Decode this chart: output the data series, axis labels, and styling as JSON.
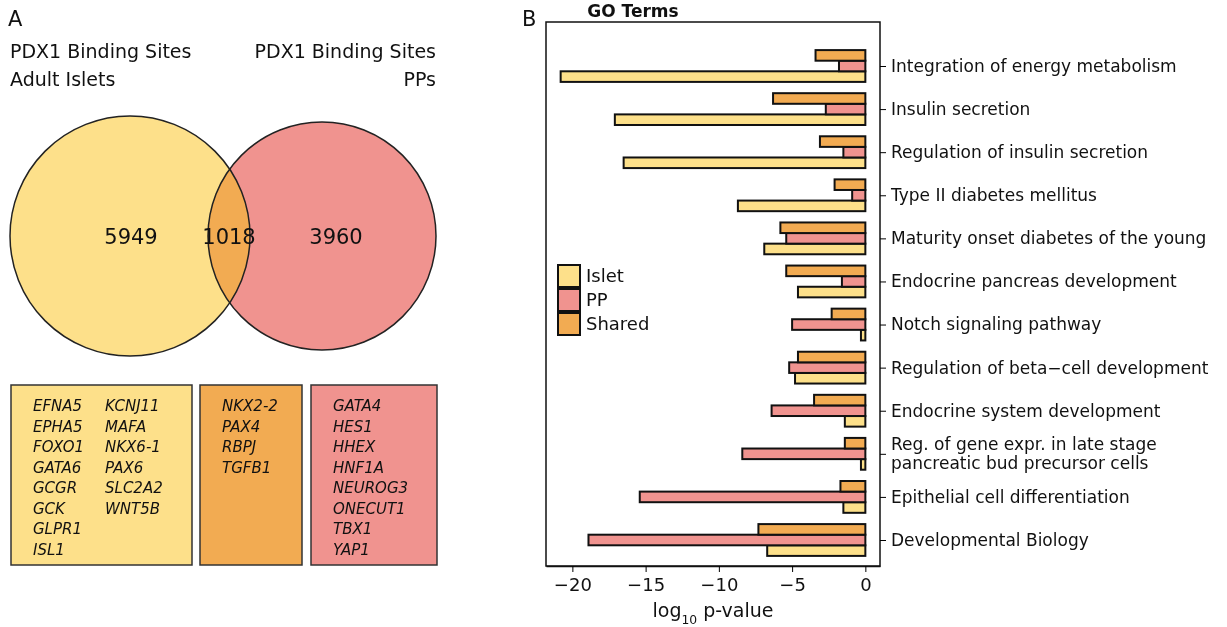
{
  "chart_data": [
    {
      "type": "other",
      "values": [
        5949,
        1018,
        3960
      ],
      "data_labels": true,
      "colors": [
        "#fde08a",
        "#f2ab52",
        "#f0938f"
      ],
      "annotations": [
        "A",
        "PDX1 Binding Sites\nAdult Islets",
        "PDX1 Binding Sites\nPPs",
        "EFNA5\nEPHA5\nFOXO1\nGATA6\nGCGR\nGCK\nGLPR1\nISL1\nKCNJ11\nMAFA\nNKX6-1\nPAX6\nSLC2A2\nWNT5B",
        "NKX2-2\nPAX4\nRBPJ\nTGFB1",
        "GATA4\nHES1\nHHEX\nHNF1A\nNEUROG3\nONECUT1\nTBX1\nYAP1"
      ]
    },
    {
      "type": "bar",
      "orientation": "horizontal",
      "title": "GO Terms",
      "xlabel": "log$_{10}$ p-value",
      "annotations": [
        "B"
      ],
      "categories": [
        "Integration of energy metabolism",
        "Insulin secretion",
        "Regulation of insulin secretion",
        "Type II diabetes mellitus",
        "Maturity onset diabetes of the young",
        "Endocrine pancreas development",
        "Notch signaling pathway",
        "Regulation of beta−cell development",
        "Endocrine system development",
        "Reg. of gene expr. in late stage pancreatic bud precursor cells",
        "Epithelial cell differentiation",
        "Developmental Biology"
      ],
      "series": [
        {
          "name": "Islet",
          "color": "#fde08a",
          "values": [
            -20.8,
            -17.1,
            -16.5,
            -8.7,
            -6.9,
            -4.6,
            -0.3,
            -4.8,
            -1.4,
            -0.3,
            -1.5,
            -6.7
          ]
        },
        {
          "name": "PP",
          "color": "#f0938f",
          "values": [
            -1.8,
            -2.7,
            -1.5,
            -0.9,
            -5.4,
            -1.6,
            -5.0,
            -5.2,
            -6.4,
            -8.4,
            -15.4,
            -18.9
          ]
        },
        {
          "name": "Shared",
          "color": "#f2ab52",
          "values": [
            -3.4,
            -6.3,
            -3.1,
            -2.1,
            -5.8,
            -5.4,
            -2.3,
            -4.6,
            -3.5,
            -1.4,
            -1.7,
            -7.3
          ]
        }
      ],
      "xlim": [
        -21.8,
        1
      ],
      "xticks": [
        {
          "value": -20,
          "label": "−20"
        },
        {
          "value": -15,
          "label": "−15"
        },
        {
          "value": -10,
          "label": "−10"
        },
        {
          "value": -5,
          "label": "−5"
        },
        0
      ],
      "legend": "left",
      "grid": false
    }
  ]
}
